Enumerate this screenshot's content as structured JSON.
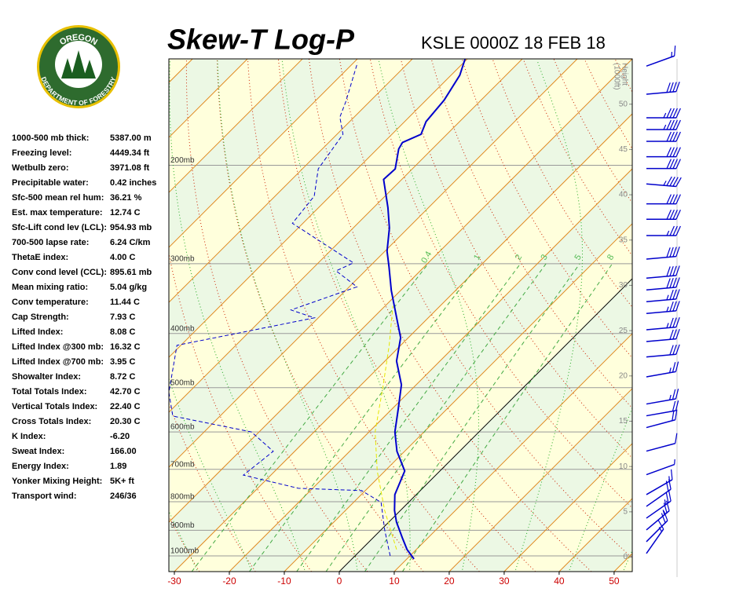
{
  "logo": {
    "top": "OREGON",
    "bottom": "DEPARTMENT OF FORESTRY"
  },
  "stats": [
    {
      "label": "1000-500 mb thick:",
      "value": "5387.00 m"
    },
    {
      "label": "Freezing level:",
      "value": "4449.34 ft"
    },
    {
      "label": "Wetbulb zero:",
      "value": "3971.08 ft"
    },
    {
      "label": "Precipitable water:",
      "value": "0.42 inches"
    },
    {
      "label": "Sfc-500 mean rel hum:",
      "value": "36.21 %"
    },
    {
      "label": "Est. max temperature:",
      "value": "12.74 C"
    },
    {
      "label": "Sfc-Lift cond lev (LCL):",
      "value": "954.93 mb"
    },
    {
      "label": "700-500 lapse rate:",
      "value": "6.24 C/km"
    },
    {
      "label": "ThetaE index:",
      "value": "4.00 C"
    },
    {
      "label": "Conv cond level (CCL):",
      "value": "895.61 mb"
    },
    {
      "label": "Mean mixing ratio:",
      "value": "5.04 g/kg"
    },
    {
      "label": "Conv temperature:",
      "value": "11.44 C"
    },
    {
      "label": "Cap Strength:",
      "value": "7.93 C"
    },
    {
      "label": "Lifted Index:",
      "value": "8.08 C"
    },
    {
      "label": "Lifted Index @300 mb:",
      "value": "16.32 C"
    },
    {
      "label": "Lifted Index @700 mb:",
      "value": "3.95 C"
    },
    {
      "label": "Showalter Index:",
      "value": "8.72 C"
    },
    {
      "label": "Total Totals Index:",
      "value": "42.70 C"
    },
    {
      "label": "Vertical Totals Index:",
      "value": "22.40 C"
    },
    {
      "label": "Cross Totals Index:",
      "value": "20.30 C"
    },
    {
      "label": "K Index:",
      "value": "-6.20"
    },
    {
      "label": "Sweat Index:",
      "value": "166.00"
    },
    {
      "label": "Energy Index:",
      "value": "1.89"
    },
    {
      "label": "Yonker Mixing Height:",
      "value": "5K+ ft"
    },
    {
      "label": "Transport wind:",
      "value": "246/36"
    }
  ],
  "chart_data": {
    "type": "skewt",
    "title": "Skew-T Log-P",
    "subtitle": "KSLE 0000Z 18 FEB 18",
    "xlim": [
      -31,
      53.3
    ],
    "xticks": [
      -30,
      -20,
      -10,
      0,
      10,
      20,
      30,
      40,
      50
    ],
    "ylim": [
      1067,
      129
    ],
    "ylog": true,
    "yticks": [
      {
        "value": 200,
        "label": "200mb"
      },
      {
        "value": 300,
        "label": "300mb"
      },
      {
        "value": 400,
        "label": "400mb"
      },
      {
        "value": 500,
        "label": "500mb"
      },
      {
        "value": 600,
        "label": "600mb"
      },
      {
        "value": 700,
        "label": "700mb"
      },
      {
        "value": 800,
        "label": "800mb"
      },
      {
        "value": 900,
        "label": "900mb"
      },
      {
        "value": 1000,
        "label": "1000mb"
      }
    ],
    "y2label": [
      "Height",
      "(1000ft)"
    ],
    "y2lim": [
      -1.6,
      55
    ],
    "y2ticks": [
      0,
      5,
      10,
      15,
      20,
      25,
      30,
      35,
      40,
      45,
      50
    ],
    "mixing_ratio": [
      {
        "value": 0.4,
        "label": "0.4"
      },
      1,
      2,
      3,
      5,
      8
    ],
    "series": [
      {
        "color": "#0000cc",
        "style": "solid",
        "x": [
          11.3,
          8.3,
          5.3,
          1.4,
          -1.1,
          -3.9,
          -6.4,
          -11.4,
          -15.3,
          -19.0,
          -22.7,
          -27.9,
          -31.4,
          -34.9,
          -41.7,
          -46.4,
          -49.6,
          -53.4,
          -57.4,
          -63.3,
          -63.1,
          -66.1,
          -66.6,
          -64.7,
          -66.1,
          -66.7,
          -68.4,
          -70.4
        ],
        "values": [
          1013,
          974,
          928,
          870,
          829,
          777,
          705,
          650,
          600,
          544,
          494,
          448,
          407,
          381,
          335,
          304,
          285,
          259,
          238,
          212,
          203,
          187,
          182,
          176,
          167,
          153,
          138,
          129
        ]
      },
      {
        "color": "#0000cc",
        "style": "dashed",
        "x": [
          6.4,
          0.7,
          -5.0,
          -10.7,
          -22.6,
          -35.0,
          -33.9,
          -41.4,
          -58.6,
          -63.6,
          -70.7,
          -62.1,
          -50.7,
          -56.4,
          -48.6,
          -55.3,
          -53.6,
          -71.9,
          -72.9,
          -77.1,
          -78.9,
          -82.6,
          -84.3,
          -89.3
        ],
        "values": [
          1000,
          899,
          802,
          764,
          757,
          717,
          650,
          600,
          562,
          510,
          420,
          400,
          375,
          363,
          330,
          309,
          299,
          254,
          227,
          203,
          176,
          164,
          154,
          131
        ]
      },
      {
        "color": "#e6e600",
        "style": "dashed",
        "x": [
          6.4,
          -2.9,
          -11.4,
          -18.9,
          -26.0,
          -32.1,
          -38.6
        ],
        "values": [
          974,
          829,
          705,
          600,
          494,
          420,
          357
        ]
      }
    ],
    "winds": {
      "color": "#0000cc",
      "height": [
        54.2,
        51.1,
        48.5,
        47.2,
        45.9,
        44.2,
        42.9,
        41.2,
        39.0,
        37.3,
        35.5,
        32.9,
        30.8,
        29.5,
        28.2,
        26.9,
        25.1,
        23.8,
        22.1,
        19.9,
        16.9,
        15.6,
        14.3,
        11.7,
        9.1,
        6.9,
        5.6,
        4.3,
        3.0,
        1.7,
        0.4
      ],
      "direction": [
        250,
        265,
        270,
        270,
        270,
        270,
        270,
        275,
        270,
        270,
        270,
        265,
        265,
        265,
        265,
        265,
        265,
        265,
        265,
        260,
        260,
        260,
        255,
        255,
        250,
        240,
        235,
        235,
        230,
        225,
        215
      ],
      "speed": [
        15,
        40,
        45,
        45,
        40,
        40,
        40,
        45,
        40,
        40,
        35,
        40,
        40,
        40,
        35,
        35,
        35,
        30,
        30,
        25,
        25,
        20,
        20,
        10,
        5,
        15,
        20,
        25,
        25,
        20,
        15
      ]
    }
  }
}
